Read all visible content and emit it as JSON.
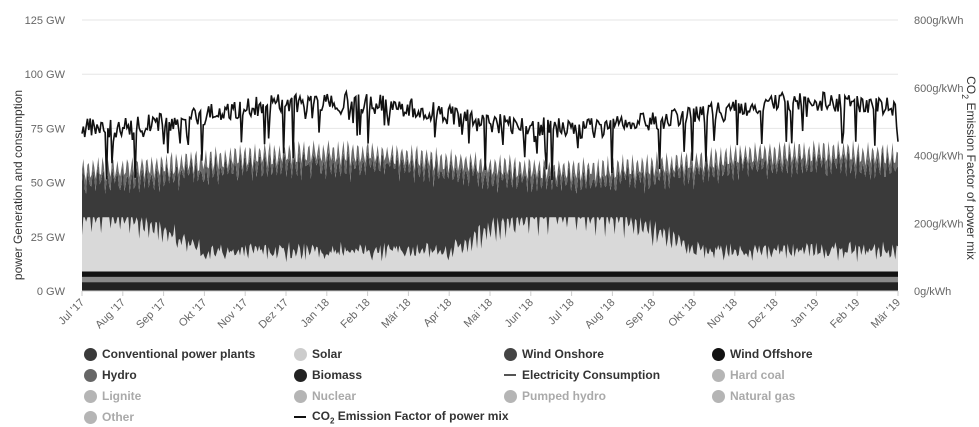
{
  "chart_data": {
    "type": "area",
    "left_axis": {
      "title": "power Generation and consumption",
      "ticks": [
        "0 GW",
        "25 GW",
        "50 GW",
        "75 GW",
        "100 GW",
        "125 GW"
      ],
      "ylim": [
        0,
        125
      ]
    },
    "right_axis": {
      "title_pre": "CO",
      "title_sub": "2",
      "title_post": " Emission Factor of power mix",
      "ticks": [
        "0g/kWh",
        "200g/kWh",
        "400g/kWh",
        "600g/kWh",
        "800g/kWh"
      ],
      "ylim": [
        0,
        800
      ]
    },
    "x_ticks": [
      "Jul '17",
      "Aug '17",
      "Sep '17",
      "Okt '17",
      "Nov '17",
      "Dez '17",
      "Jan '18",
      "Feb '18",
      "Mär '18",
      "Apr '18",
      "Mai '18",
      "Jun '18",
      "Jul '18",
      "Aug '18",
      "Sep '18",
      "Okt '18",
      "Nov '18",
      "Dez '18",
      "Jan '19",
      "Feb '19",
      "Mär '19"
    ],
    "grid": "horizontal",
    "legend_position": "bottom",
    "series_levels": {
      "base_layers_gw": [
        4,
        2.5,
        2.5
      ],
      "conventional_gw": [
        40,
        65
      ],
      "solar_gw": [
        3,
        25
      ],
      "electricity_consumption_gw": [
        50,
        70
      ],
      "co2_factor_gkwh": [
        300,
        650
      ]
    },
    "legend": [
      {
        "name": "Conventional power plants",
        "color": "#3a3a3a",
        "symbol": "dot",
        "visible": true
      },
      {
        "name": "Solar",
        "color": "#cccccc",
        "symbol": "dot",
        "visible": true
      },
      {
        "name": "Wind Onshore",
        "color": "#444444",
        "symbol": "dot",
        "visible": true
      },
      {
        "name": "Wind Offshore",
        "color": "#111111",
        "symbol": "dot",
        "visible": true
      },
      {
        "name": "Hydro",
        "color": "#666666",
        "symbol": "dot",
        "visible": true
      },
      {
        "name": "Biomass",
        "color": "#222222",
        "symbol": "dot",
        "visible": true
      },
      {
        "name": "Electricity Consumption",
        "color": "#555555",
        "symbol": "line",
        "visible": true
      },
      {
        "name": "Hard coal",
        "color": "#b5b5b5",
        "symbol": "dot",
        "visible": false
      },
      {
        "name": "Lignite",
        "color": "#b5b5b5",
        "symbol": "dot",
        "visible": false
      },
      {
        "name": "Nuclear",
        "color": "#b5b5b5",
        "symbol": "dot",
        "visible": false
      },
      {
        "name": "Pumped hydro",
        "color": "#b5b5b5",
        "symbol": "dot",
        "visible": false
      },
      {
        "name": "Natural gas",
        "color": "#b5b5b5",
        "symbol": "dot",
        "visible": false
      },
      {
        "name": "Other",
        "color": "#b5b5b5",
        "symbol": "dot",
        "visible": false
      },
      {
        "name_pre": "CO",
        "name_sub": "2",
        "name_post": " Emission Factor of power mix",
        "color": "#111111",
        "symbol": "line",
        "visible": true
      }
    ]
  }
}
